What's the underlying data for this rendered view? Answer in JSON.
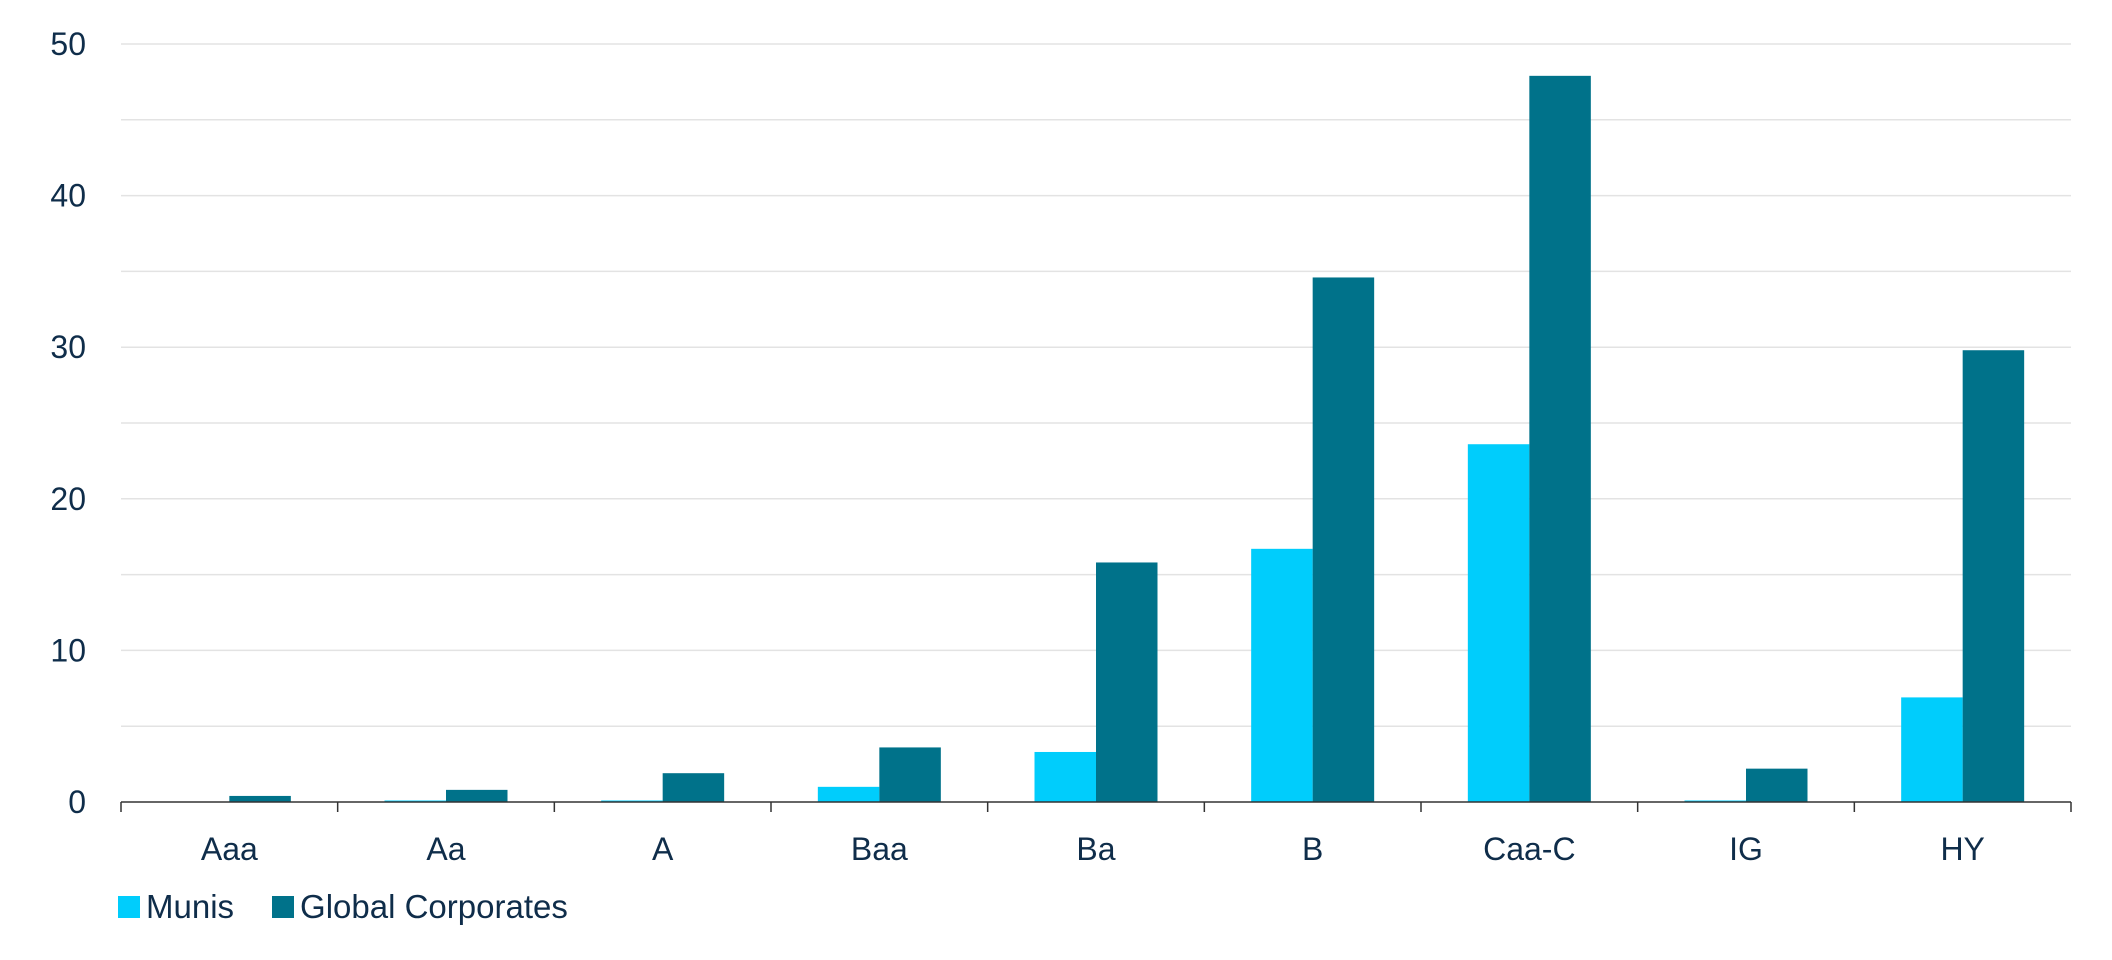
{
  "chart_data": {
    "type": "bar",
    "title": "",
    "xlabel": "",
    "ylabel": "",
    "categories": [
      "Aaa",
      "Aa",
      "A",
      "Baa",
      "Ba",
      "B",
      "Caa-C",
      "IG",
      "HY"
    ],
    "series": [
      {
        "name": "Munis",
        "color": "#00cdfc",
        "values": [
          0,
          0.1,
          0.1,
          1.0,
          3.3,
          16.7,
          23.6,
          0.1,
          6.9
        ]
      },
      {
        "name": "Global Corporates",
        "color": "#00728a",
        "values": [
          0.4,
          0.8,
          1.9,
          3.6,
          15.8,
          34.6,
          47.9,
          2.2,
          29.8
        ]
      }
    ],
    "ylim": [
      0,
      50
    ],
    "yticks": [
      0,
      10,
      20,
      30,
      40,
      50
    ],
    "grid": true,
    "legend_position": "bottom-left"
  }
}
